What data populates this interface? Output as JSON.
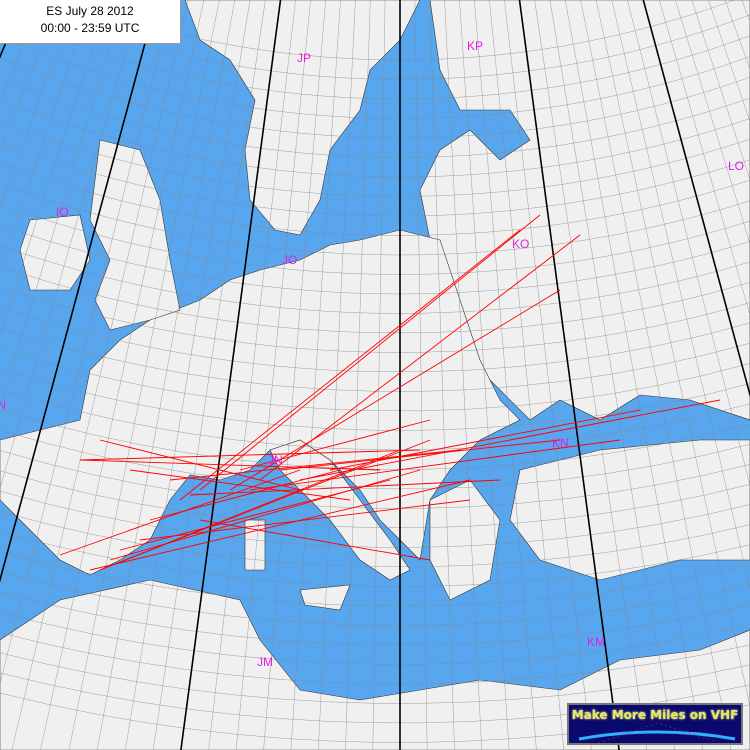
{
  "header": {
    "title": "ES July  28 2012",
    "time_range": "00:00 - 23:59  UTC"
  },
  "map": {
    "sea_color": "#57a6ee",
    "land_color": "#f0f0f0",
    "path_color": "#ff0000",
    "grid_color": "#000000",
    "locator_fields": [
      "JP",
      "KP",
      "IO",
      "JO",
      "KO",
      "LO",
      "IN",
      "JN",
      "KN",
      "JM",
      "KM"
    ]
  },
  "logo": {
    "text": "Make More Miles on VHF"
  }
}
